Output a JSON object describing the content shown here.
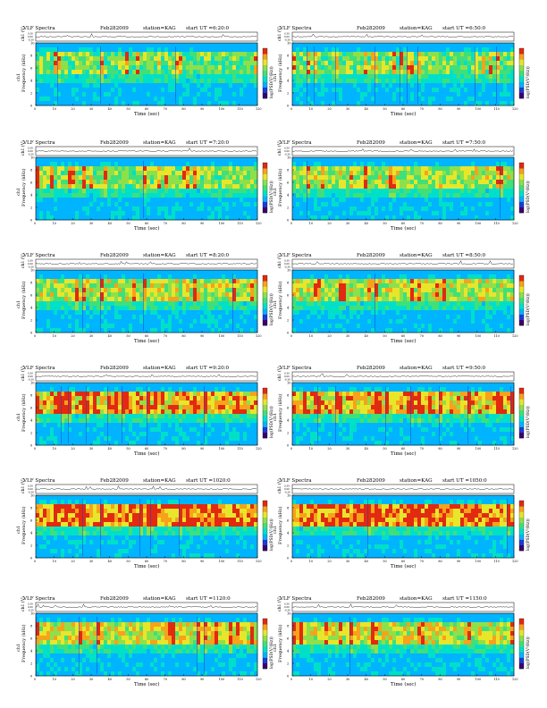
{
  "page": {
    "background": "#ffffff",
    "colormap": [
      "#3a006b",
      "#1d3bd8",
      "#00b4ff",
      "#00e0c8",
      "#3fe07a",
      "#8ee04a",
      "#e8e62a",
      "#f7a21b",
      "#e12a10"
    ]
  },
  "common": {
    "title": "VLF Spectra",
    "date": "Feb282009",
    "station": "station=KAG",
    "ch_label": "ch1 (V)",
    "freq_label": "Frequency (kHz)",
    "time_label": "Time (sec)",
    "colorbar_label": "log(PSD(V²/Hz))",
    "ch_ticks": [
      "0.30",
      "0.00",
      "-0.30"
    ],
    "freq_ticks": [
      "0",
      "2",
      "4",
      "6",
      "8",
      "10"
    ],
    "time_ticks": [
      "0",
      "10",
      "20",
      "30",
      "40",
      "50",
      "60",
      "70",
      "80",
      "90",
      "100",
      "110",
      "120"
    ]
  },
  "chart_data": [
    {
      "type": "heatmap",
      "title": "VLF Spectra",
      "start_ut": "start UT =6:20:0",
      "x_range": [
        0,
        120
      ],
      "y_range": [
        0,
        10
      ],
      "band_intensity": 0.55
    },
    {
      "type": "heatmap",
      "title": "VLF Spectra",
      "start_ut": "start UT =6:50:0",
      "x_range": [
        0,
        120
      ],
      "y_range": [
        0,
        10
      ],
      "band_intensity": 0.55
    },
    {
      "type": "heatmap",
      "title": "VLF Spectra",
      "start_ut": "start UT =7:20:0",
      "x_range": [
        0,
        120
      ],
      "y_range": [
        0,
        10
      ],
      "band_intensity": 0.6
    },
    {
      "type": "heatmap",
      "title": "VLF Spectra",
      "start_ut": "start UT =7:50:0",
      "x_range": [
        0,
        120
      ],
      "y_range": [
        0,
        10
      ],
      "band_intensity": 0.62
    },
    {
      "type": "heatmap",
      "title": "VLF Spectra",
      "start_ut": "start UT =8:20:0",
      "x_range": [
        0,
        120
      ],
      "y_range": [
        0,
        10
      ],
      "band_intensity": 0.65
    },
    {
      "type": "heatmap",
      "title": "VLF Spectra",
      "start_ut": "start UT =8:50:0",
      "x_range": [
        0,
        120
      ],
      "y_range": [
        0,
        10
      ],
      "band_intensity": 0.66
    },
    {
      "type": "heatmap",
      "title": "VLF Spectra",
      "start_ut": "start UT =9:20:0",
      "x_range": [
        0,
        120
      ],
      "y_range": [
        0,
        10
      ],
      "band_intensity": 0.78
    },
    {
      "type": "heatmap",
      "title": "VLF Spectra",
      "start_ut": "start UT =9:50:0",
      "x_range": [
        0,
        120
      ],
      "y_range": [
        0,
        10
      ],
      "band_intensity": 0.78
    },
    {
      "type": "heatmap",
      "title": "VLF Spectra",
      "start_ut": "start UT =1020:0",
      "x_range": [
        0,
        120
      ],
      "y_range": [
        0,
        10
      ],
      "band_intensity": 0.85
    },
    {
      "type": "heatmap",
      "title": "VLF Spectra",
      "start_ut": "start UT =1050:0",
      "x_range": [
        0,
        120
      ],
      "y_range": [
        0,
        10
      ],
      "band_intensity": 0.85
    },
    {
      "type": "heatmap",
      "title": "VLF Spectra",
      "start_ut": "start UT =1120:0",
      "x_range": [
        0,
        120
      ],
      "y_range": [
        0,
        10
      ],
      "band_intensity": 0.7
    },
    {
      "type": "heatmap",
      "title": "VLF Spectra",
      "start_ut": "start UT =1150:0",
      "x_range": [
        0,
        120
      ],
      "y_range": [
        0,
        10
      ],
      "band_intensity": 0.68
    }
  ]
}
